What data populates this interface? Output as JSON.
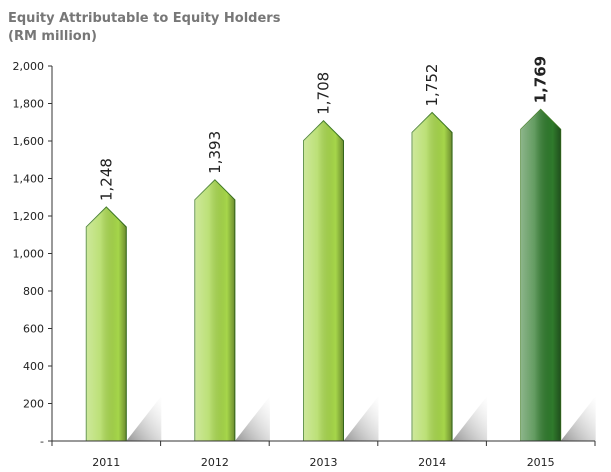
{
  "chart_data": {
    "type": "bar",
    "title": "Equity Attributable to Equity Holders",
    "subtitle": "(RM million)",
    "categories": [
      "2011",
      "2012",
      "2013",
      "2014",
      "2015"
    ],
    "values": [
      1248,
      1393,
      1708,
      1752,
      1769
    ],
    "value_labels": [
      "1,248",
      "1,393",
      "1,708",
      "1,752",
      "1,769"
    ],
    "value_label_weights": [
      "normal",
      "normal",
      "normal",
      "normal",
      "bold"
    ],
    "colors": [
      "#a6d64a",
      "#a6d64a",
      "#a6d64a",
      "#a6d64a",
      "#2f7a2c"
    ],
    "ylim": [
      0,
      2000
    ],
    "yticks": [
      {
        "value": 0,
        "label": "-"
      },
      200,
      400,
      600,
      800,
      {
        "value": 1000,
        "label": "1,000"
      },
      {
        "value": 1200,
        "label": "1,200"
      },
      {
        "value": 1400,
        "label": "1,400"
      },
      {
        "value": 1600,
        "label": "1,600"
      },
      {
        "value": 1800,
        "label": "1,800"
      },
      {
        "value": 2000,
        "label": "2,000"
      }
    ]
  }
}
